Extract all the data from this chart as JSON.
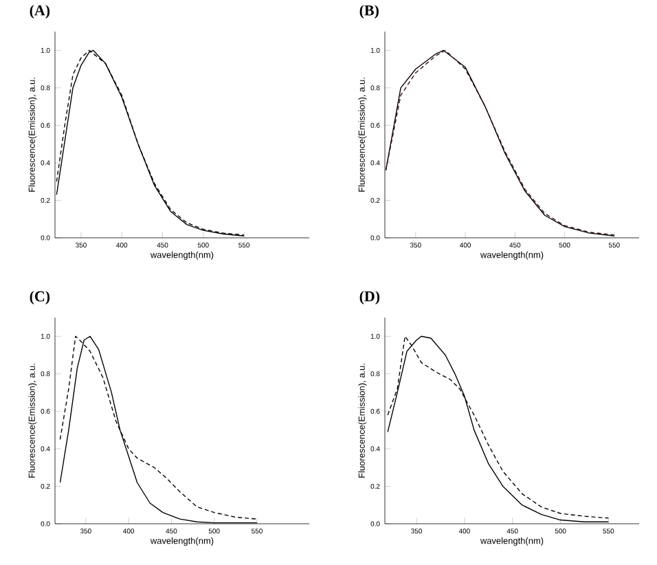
{
  "chart_data": [
    {
      "type": "line",
      "title": "(A)",
      "xlabel": "wavelength(nm)",
      "ylabel": "Fluorescence(Emission), a.u.",
      "xlim": [
        318,
        630
      ],
      "ylim": [
        0,
        1.1
      ],
      "xticks": [
        350,
        400,
        450,
        500,
        550
      ],
      "yticks": [
        {
          "value": 0,
          "label": "0.0"
        },
        {
          "value": 0.2,
          "label": "0.2"
        },
        {
          "value": 0.4,
          "label": "0.4"
        },
        {
          "value": 0.6,
          "label": "0.6"
        },
        {
          "value": 0.8,
          "label": "0.8"
        },
        {
          "value": 1,
          "label": "1.0"
        }
      ],
      "series": [
        {
          "color": "#000000",
          "line_style": "solid",
          "x": [
            320,
            340,
            350,
            360,
            365,
            380,
            400,
            420,
            440,
            460,
            480,
            500,
            525,
            550
          ],
          "values": [
            0.23,
            0.8,
            0.92,
            0.99,
            1.0,
            0.93,
            0.75,
            0.5,
            0.28,
            0.14,
            0.07,
            0.04,
            0.02,
            0.01
          ]
        },
        {
          "color": "#000000",
          "line_style": "dashed",
          "x": [
            320,
            330,
            340,
            350,
            360,
            380,
            400,
            420,
            440,
            460,
            480,
            500,
            525,
            550
          ],
          "values": [
            0.3,
            0.6,
            0.87,
            0.96,
            1.0,
            0.93,
            0.76,
            0.5,
            0.29,
            0.15,
            0.08,
            0.045,
            0.025,
            0.015
          ]
        }
      ]
    },
    {
      "type": "line",
      "title": "(B)",
      "xlabel": "wavelength(nm)",
      "ylabel": "Fluorescence(Emission), a.u.",
      "xlim": [
        319,
        575
      ],
      "ylim": [
        0,
        1.1
      ],
      "xticks": [
        350,
        400,
        450,
        500,
        550
      ],
      "yticks": [
        {
          "value": 0,
          "label": "0.0"
        },
        {
          "value": 0.2,
          "label": "0.2"
        },
        {
          "value": 0.4,
          "label": "0.4"
        },
        {
          "value": 0.6,
          "label": "0.6"
        },
        {
          "value": 0.8,
          "label": "0.8"
        },
        {
          "value": 1,
          "label": "1.0"
        }
      ],
      "series": [
        {
          "color": "#000000",
          "line_style": "solid",
          "x": [
            320,
            335,
            350,
            370,
            378,
            400,
            420,
            440,
            460,
            480,
            500,
            525,
            550
          ],
          "values": [
            0.36,
            0.8,
            0.9,
            0.98,
            1.0,
            0.91,
            0.7,
            0.45,
            0.25,
            0.12,
            0.06,
            0.025,
            0.01
          ]
        },
        {
          "color": "#3a1010",
          "line_style": "dashed",
          "x": [
            320,
            335,
            350,
            370,
            380,
            400,
            420,
            440,
            460,
            480,
            500,
            525,
            550
          ],
          "values": [
            0.36,
            0.76,
            0.88,
            0.97,
            1.0,
            0.9,
            0.7,
            0.46,
            0.26,
            0.13,
            0.065,
            0.03,
            0.015
          ]
        }
      ]
    },
    {
      "type": "line",
      "title": "(C)",
      "xlabel": "wavelength(nm)",
      "ylabel": "Fluorescence(Emission), a.u.",
      "xlim": [
        314,
        611
      ],
      "ylim": [
        0,
        1.1
      ],
      "xticks": [
        350,
        400,
        450,
        500,
        550
      ],
      "yticks": [
        {
          "value": 0,
          "label": "0.0"
        },
        {
          "value": 0.2,
          "label": "0.2"
        },
        {
          "value": 0.4,
          "label": "0.4"
        },
        {
          "value": 0.6,
          "label": "0.6"
        },
        {
          "value": 0.8,
          "label": "0.8"
        },
        {
          "value": 1,
          "label": "1.0"
        }
      ],
      "series": [
        {
          "color": "#000000",
          "line_style": "solid",
          "x": [
            320,
            330,
            340,
            348,
            355,
            365,
            380,
            390,
            400,
            410,
            425,
            440,
            460,
            480,
            500,
            550
          ],
          "values": [
            0.22,
            0.5,
            0.83,
            0.98,
            1.0,
            0.93,
            0.7,
            0.5,
            0.36,
            0.22,
            0.11,
            0.06,
            0.025,
            0.01,
            0.005,
            0.005
          ]
        },
        {
          "color": "#000000",
          "line_style": "dashed",
          "x": [
            320,
            330,
            338,
            345,
            355,
            370,
            385,
            400,
            410,
            430,
            445,
            460,
            480,
            500,
            525,
            550
          ],
          "values": [
            0.45,
            0.72,
            1.0,
            0.97,
            0.92,
            0.78,
            0.55,
            0.4,
            0.35,
            0.3,
            0.24,
            0.17,
            0.09,
            0.06,
            0.035,
            0.025
          ]
        }
      ]
    },
    {
      "type": "line",
      "title": "(D)",
      "xlabel": "wavelength(nm)",
      "ylabel": "Fluorescence(Emission), a.u.",
      "xlim": [
        317,
        582
      ],
      "ylim": [
        0,
        1.1
      ],
      "xticks": [
        350,
        400,
        450,
        500,
        550
      ],
      "yticks": [
        {
          "value": 0,
          "label": "0.0"
        },
        {
          "value": 0.2,
          "label": "0.2"
        },
        {
          "value": 0.4,
          "label": "0.4"
        },
        {
          "value": 0.6,
          "label": "0.6"
        },
        {
          "value": 0.8,
          "label": "0.8"
        },
        {
          "value": 1,
          "label": "1.0"
        }
      ],
      "series": [
        {
          "color": "#000000",
          "line_style": "solid",
          "x": [
            320,
            330,
            340,
            350,
            355,
            365,
            380,
            390,
            400,
            410,
            425,
            440,
            460,
            480,
            500,
            525,
            550
          ],
          "values": [
            0.49,
            0.7,
            0.92,
            0.98,
            1.0,
            0.99,
            0.9,
            0.8,
            0.68,
            0.5,
            0.32,
            0.2,
            0.1,
            0.05,
            0.02,
            0.01,
            0.01
          ]
        },
        {
          "color": "#000000",
          "line_style": "dashed",
          "x": [
            320,
            330,
            338,
            345,
            355,
            370,
            385,
            395,
            410,
            425,
            440,
            460,
            480,
            500,
            525,
            550
          ],
          "values": [
            0.58,
            0.72,
            1.0,
            0.95,
            0.86,
            0.81,
            0.77,
            0.72,
            0.58,
            0.42,
            0.28,
            0.16,
            0.09,
            0.055,
            0.04,
            0.03
          ]
        }
      ]
    }
  ]
}
